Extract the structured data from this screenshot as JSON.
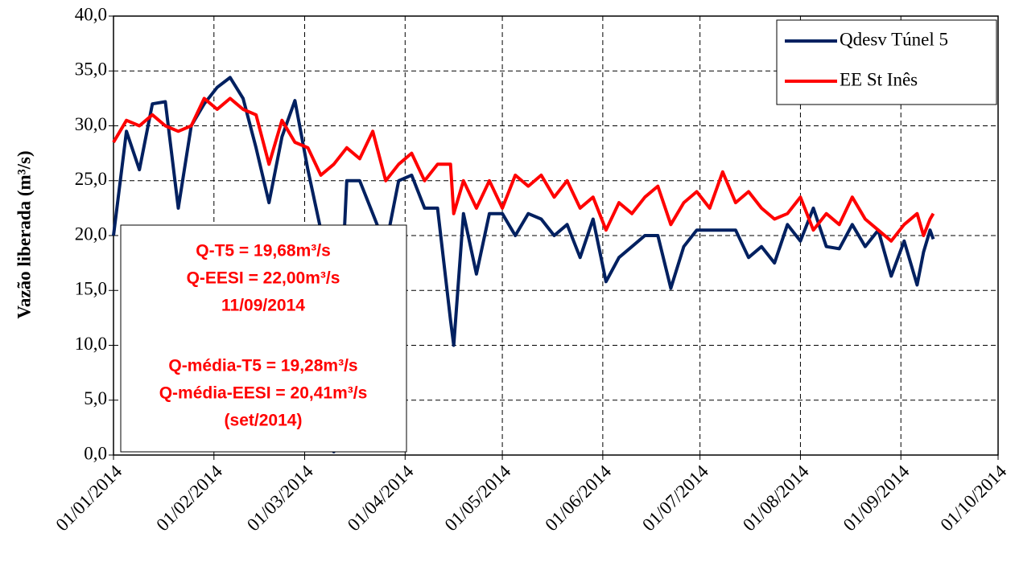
{
  "chart_data": {
    "type": "line",
    "y_label": "Vazão liberada  (m³/s)",
    "x": [
      "01/01/2014",
      "05/01/2014",
      "09/01/2014",
      "13/01/2014",
      "17/01/2014",
      "21/01/2014",
      "25/01/2014",
      "29/01/2014",
      "02/02/2014",
      "06/02/2014",
      "10/02/2014",
      "14/02/2014",
      "18/02/2014",
      "22/02/2014",
      "26/02/2014",
      "02/03/2014",
      "06/03/2014",
      "10/03/2014",
      "14/03/2014",
      "18/03/2014",
      "22/03/2014",
      "26/03/2014",
      "30/03/2014",
      "03/04/2014",
      "07/04/2014",
      "11/04/2014",
      "15/04/2014",
      "16/04/2014",
      "19/04/2014",
      "23/04/2014",
      "27/04/2014",
      "01/05/2014",
      "05/05/2014",
      "09/05/2014",
      "13/05/2014",
      "17/05/2014",
      "21/05/2014",
      "25/05/2014",
      "29/05/2014",
      "02/06/2014",
      "06/06/2014",
      "10/06/2014",
      "14/06/2014",
      "18/06/2014",
      "22/06/2014",
      "26/06/2014",
      "30/06/2014",
      "04/07/2014",
      "08/07/2014",
      "12/07/2014",
      "16/07/2014",
      "20/07/2014",
      "24/07/2014",
      "28/07/2014",
      "01/08/2014",
      "05/08/2014",
      "09/08/2014",
      "13/08/2014",
      "17/08/2014",
      "21/08/2014",
      "25/08/2014",
      "29/08/2014",
      "02/09/2014",
      "06/09/2014",
      "08/09/2014",
      "10/09/2014",
      "11/09/2014"
    ],
    "series": [
      {
        "name": "Qdesv Túnel 5",
        "color": "#002060",
        "values": [
          20,
          29.5,
          26,
          32,
          32.2,
          22.5,
          30,
          32,
          33.5,
          34.4,
          32.5,
          28,
          23,
          29,
          32.3,
          26,
          20.5,
          0.3,
          25,
          25,
          22,
          19,
          25,
          25.5,
          22.5,
          22.5,
          12.3,
          10,
          22,
          16.5,
          22,
          22,
          20,
          22,
          21.5,
          20,
          21,
          18,
          21.5,
          15.8,
          18,
          19,
          20,
          20,
          15.2,
          19,
          20.5,
          20.5,
          20.5,
          20.5,
          18,
          19,
          17.5,
          21,
          19.5,
          22.5,
          19,
          18.8,
          21,
          19,
          20.5,
          16.3,
          19.5,
          15.5,
          18.5,
          20.5,
          19.68
        ]
      },
      {
        "name": "EE St Inês",
        "color": "#ff0000",
        "values": [
          28.5,
          30.5,
          30,
          31,
          30,
          29.5,
          30,
          32.5,
          31.5,
          32.5,
          31.5,
          31,
          26.5,
          30.5,
          28.5,
          28,
          25.5,
          26.5,
          28,
          27,
          29.5,
          25,
          26.5,
          27.5,
          25,
          26.5,
          26.5,
          22,
          25,
          22.5,
          25,
          22.5,
          25.5,
          24.5,
          25.5,
          23.5,
          25,
          22.5,
          23.5,
          20.5,
          23,
          22,
          23.5,
          24.5,
          21,
          23,
          24,
          22.5,
          25.8,
          23,
          24,
          22.5,
          21.5,
          22,
          23.5,
          20.5,
          22,
          21,
          23.5,
          21.5,
          20.5,
          19.5,
          21,
          22,
          20,
          21.5,
          22
        ]
      }
    ],
    "xlim": [
      "01/01/2014",
      "01/10/2014"
    ],
    "xticks": [
      "01/01/2014",
      "01/02/2014",
      "01/03/2014",
      "01/04/2014",
      "01/05/2014",
      "01/06/2014",
      "01/07/2014",
      "01/08/2014",
      "01/09/2014",
      "01/10/2014"
    ],
    "ylim": [
      0,
      40
    ],
    "yticks": [
      {
        "value": 0,
        "label": "0,0"
      },
      {
        "value": 5,
        "label": "5,0"
      },
      {
        "value": 10,
        "label": "10,0"
      },
      {
        "value": 15,
        "label": "15,0"
      },
      {
        "value": 20,
        "label": "20,0"
      },
      {
        "value": 25,
        "label": "25,0"
      },
      {
        "value": 30,
        "label": "30,0"
      },
      {
        "value": 35,
        "label": "35,0"
      },
      {
        "value": 40,
        "label": "40,0"
      }
    ],
    "grid": true,
    "legend": "upper right",
    "annotation_color": "#ff0000",
    "annotations": [
      [
        "Q-T5 = 19,68m³/s",
        "Q-EESI = 22,00m³/s",
        "11/09/2014"
      ],
      [
        "Q-média-T5 = 19,28m³/s",
        "Q-média-EESI = 20,41m³/s",
        "(set/2014)"
      ]
    ]
  }
}
